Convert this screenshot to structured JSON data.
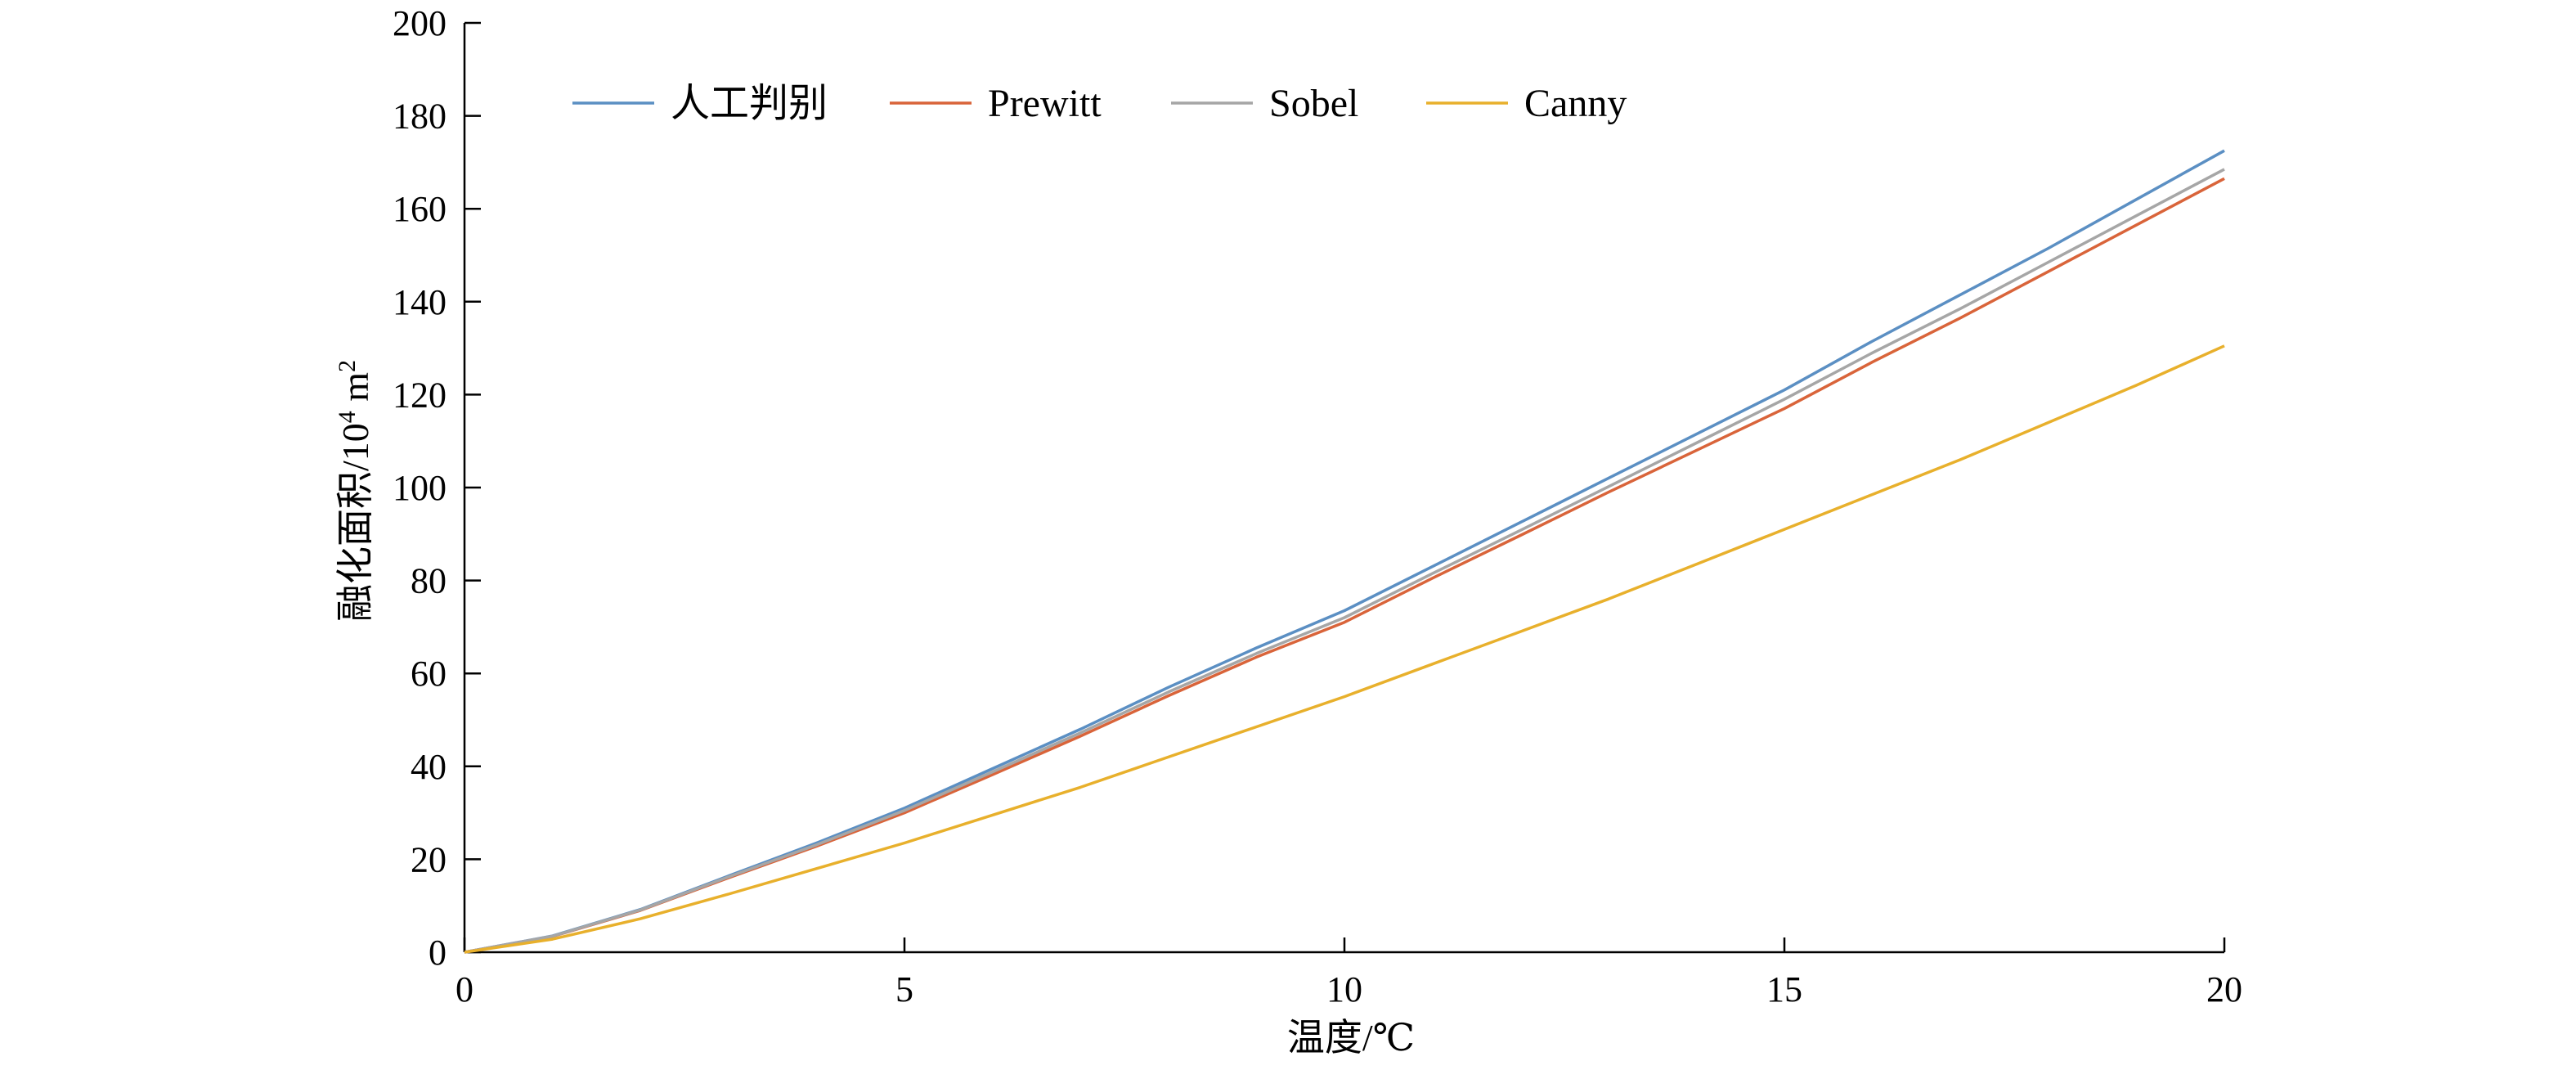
{
  "chart_data": {
    "type": "line",
    "title": "",
    "xlabel": "温度/℃",
    "ylabel": {
      "prefix": "融化面积/10",
      "sup1": "4",
      "mid": " m",
      "sup2": "2"
    },
    "xlim": [
      0,
      20
    ],
    "ylim": [
      0,
      200
    ],
    "xticks": [
      0,
      5,
      10,
      15,
      20
    ],
    "yticks": [
      0,
      20,
      40,
      60,
      80,
      100,
      120,
      140,
      160,
      180,
      200
    ],
    "grid": false,
    "legend_position": "top-left",
    "x": [
      0,
      1,
      2,
      3,
      4,
      5,
      6,
      7,
      8,
      9,
      10,
      11,
      12,
      13,
      14,
      15,
      16,
      17,
      18,
      19,
      20
    ],
    "series": [
      {
        "name": "人工判别",
        "color": "#5b8fc3",
        "values": [
          0,
          3.5,
          9.2,
          16.4,
          23.5,
          31.0,
          39.5,
          48.0,
          57.0,
          65.5,
          73.5,
          83.0,
          92.5,
          102.0,
          111.5,
          121.0,
          131.5,
          141.5,
          151.5,
          162.0,
          172.5
        ]
      },
      {
        "name": "Prewitt",
        "color": "#d9643a",
        "values": [
          0,
          3.4,
          9.0,
          16.0,
          22.8,
          30.0,
          38.2,
          46.5,
          55.2,
          63.5,
          71.0,
          80.5,
          89.7,
          99.0,
          108.0,
          117.0,
          127.0,
          136.5,
          146.5,
          156.5,
          166.5
        ]
      },
      {
        "name": "Sobel",
        "color": "#a6a6a6",
        "values": [
          0,
          3.45,
          9.1,
          16.2,
          23.1,
          30.5,
          38.8,
          47.2,
          56.0,
          64.3,
          72.0,
          81.5,
          90.8,
          100.2,
          109.6,
          119.0,
          129.0,
          138.5,
          148.5,
          158.5,
          168.5
        ]
      },
      {
        "name": "Canny",
        "color": "#e8b02c",
        "values": [
          0,
          2.8,
          7.2,
          12.5,
          18.0,
          23.5,
          29.5,
          35.5,
          42.0,
          48.5,
          55.0,
          62.0,
          69.0,
          76.0,
          83.5,
          91.0,
          98.5,
          106.0,
          114.0,
          122.0,
          130.5
        ]
      }
    ]
  }
}
